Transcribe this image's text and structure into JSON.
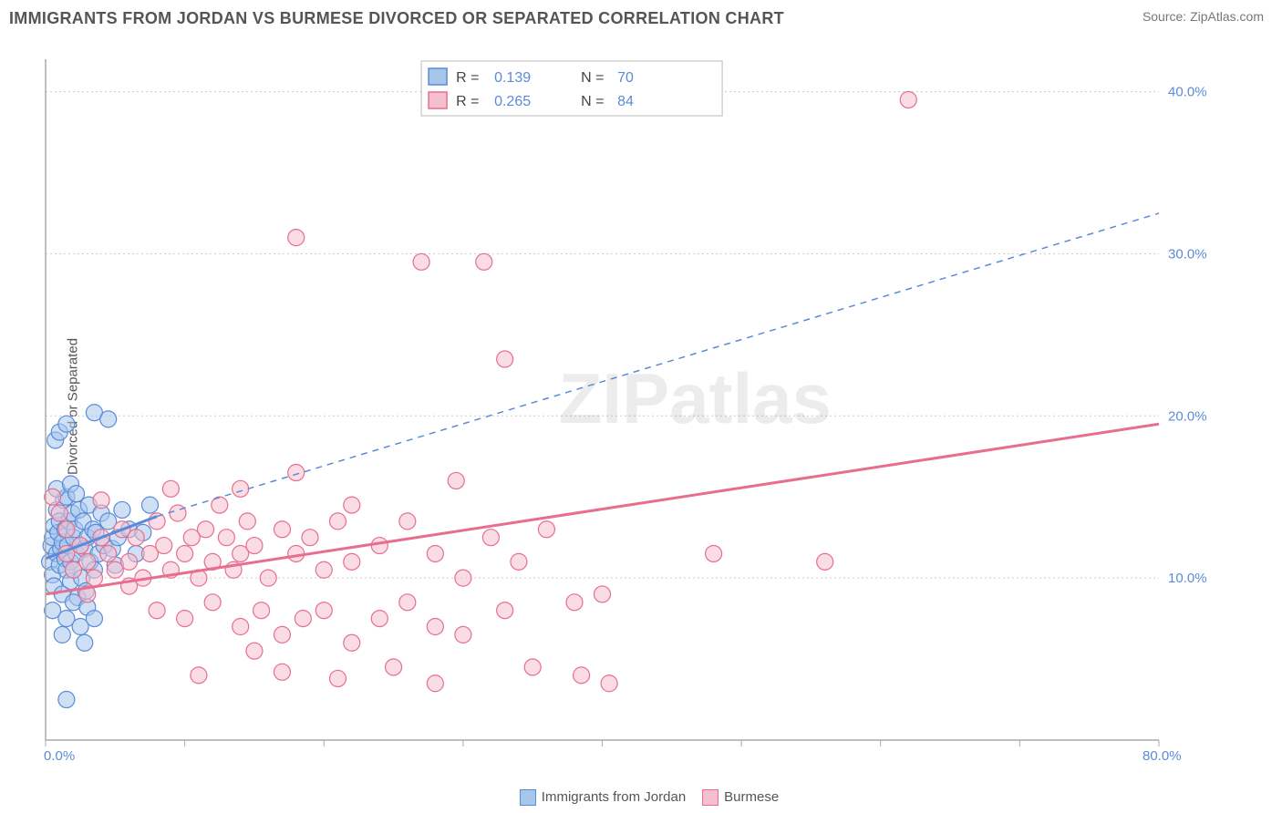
{
  "header": {
    "title": "IMMIGRANTS FROM JORDAN VS BURMESE DIVORCED OR SEPARATED CORRELATION CHART",
    "source_prefix": "Source: ",
    "source_name": "ZipAtlas.com"
  },
  "ylabel": "Divorced or Separated",
  "watermark": "ZIPatlas",
  "chart": {
    "type": "scatter",
    "xlim": [
      0,
      80
    ],
    "ylim": [
      0,
      42
    ],
    "x_ticks": [
      0,
      10,
      20,
      30,
      40,
      50,
      60,
      70,
      80
    ],
    "x_tick_labels": {
      "0": "0.0%",
      "80": "80.0%"
    },
    "y_gridlines": [
      10,
      20,
      30,
      40
    ],
    "y_gridline_labels": {
      "10": "10.0%",
      "20": "20.0%",
      "30": "30.0%",
      "40": "40.0%"
    },
    "background_color": "#ffffff",
    "grid_color": "#cccccc",
    "axis_color": "#aaaaaa",
    "label_color": "#5b8bd8",
    "marker_radius": 9,
    "marker_opacity": 0.55,
    "series": [
      {
        "name": "Immigrants from Jordan",
        "color_fill": "#a8c6ec",
        "color_stroke": "#5b8bd8",
        "r_value": "0.139",
        "n_value": "70",
        "trend_solid": {
          "x1": 0,
          "y1": 11.2,
          "x2": 8,
          "y2": 13.8
        },
        "trend_dashed": {
          "x1": 8,
          "y1": 13.8,
          "x2": 80,
          "y2": 32.5
        },
        "points": [
          [
            0.3,
            11.0
          ],
          [
            0.4,
            12.0
          ],
          [
            0.5,
            10.2
          ],
          [
            0.5,
            12.5
          ],
          [
            0.6,
            13.2
          ],
          [
            0.6,
            9.5
          ],
          [
            0.8,
            11.5
          ],
          [
            0.8,
            14.2
          ],
          [
            0.9,
            12.8
          ],
          [
            1.0,
            10.8
          ],
          [
            1.0,
            13.5
          ],
          [
            1.1,
            11.8
          ],
          [
            1.2,
            9.0
          ],
          [
            1.2,
            12.2
          ],
          [
            1.3,
            14.8
          ],
          [
            1.4,
            13.0
          ],
          [
            1.4,
            11.2
          ],
          [
            1.5,
            10.5
          ],
          [
            1.5,
            15.0
          ],
          [
            1.6,
            12.0
          ],
          [
            1.7,
            13.5
          ],
          [
            1.8,
            11.0
          ],
          [
            1.8,
            9.8
          ],
          [
            1.9,
            14.0
          ],
          [
            2.0,
            12.5
          ],
          [
            2.0,
            10.5
          ],
          [
            2.1,
            13.0
          ],
          [
            2.2,
            11.5
          ],
          [
            2.3,
            8.8
          ],
          [
            2.4,
            14.2
          ],
          [
            2.5,
            12.0
          ],
          [
            2.6,
            10.0
          ],
          [
            2.7,
            13.5
          ],
          [
            2.8,
            11.8
          ],
          [
            2.9,
            9.2
          ],
          [
            3.0,
            12.5
          ],
          [
            3.1,
            14.5
          ],
          [
            3.2,
            11.0
          ],
          [
            3.4,
            13.0
          ],
          [
            3.5,
            10.5
          ],
          [
            3.6,
            12.8
          ],
          [
            3.8,
            11.5
          ],
          [
            4.0,
            14.0
          ],
          [
            4.2,
            12.0
          ],
          [
            4.5,
            13.5
          ],
          [
            4.8,
            11.8
          ],
          [
            5.0,
            10.8
          ],
          [
            5.2,
            12.5
          ],
          [
            5.5,
            14.2
          ],
          [
            6.0,
            13.0
          ],
          [
            6.5,
            11.5
          ],
          [
            7.0,
            12.8
          ],
          [
            7.5,
            14.5
          ],
          [
            0.7,
            18.5
          ],
          [
            1.0,
            19.0
          ],
          [
            1.5,
            19.5
          ],
          [
            3.5,
            20.2
          ],
          [
            4.5,
            19.8
          ],
          [
            0.5,
            8.0
          ],
          [
            1.5,
            7.5
          ],
          [
            2.0,
            8.5
          ],
          [
            2.5,
            7.0
          ],
          [
            3.0,
            8.2
          ],
          [
            3.5,
            7.5
          ],
          [
            1.5,
            2.5
          ],
          [
            0.8,
            15.5
          ],
          [
            1.2,
            6.5
          ],
          [
            2.8,
            6.0
          ],
          [
            1.8,
            15.8
          ],
          [
            2.2,
            15.2
          ]
        ]
      },
      {
        "name": "Burmese",
        "color_fill": "#f4c0cd",
        "color_stroke": "#e86e8d",
        "r_value": "0.265",
        "n_value": "84",
        "trend_solid": {
          "x1": 0,
          "y1": 9.0,
          "x2": 80,
          "y2": 19.5
        },
        "trend_dashed": null,
        "points": [
          [
            1.5,
            11.5
          ],
          [
            2.0,
            10.5
          ],
          [
            2.5,
            12.0
          ],
          [
            3.0,
            11.0
          ],
          [
            3.5,
            10.0
          ],
          [
            4.0,
            12.5
          ],
          [
            4.5,
            11.5
          ],
          [
            5.0,
            10.5
          ],
          [
            5.5,
            13.0
          ],
          [
            6.0,
            11.0
          ],
          [
            6.5,
            12.5
          ],
          [
            7.0,
            10.0
          ],
          [
            7.5,
            11.5
          ],
          [
            8.0,
            13.5
          ],
          [
            8.5,
            12.0
          ],
          [
            9.0,
            10.5
          ],
          [
            9.5,
            14.0
          ],
          [
            10.0,
            11.5
          ],
          [
            10.5,
            12.5
          ],
          [
            11.0,
            10.0
          ],
          [
            11.5,
            13.0
          ],
          [
            12.0,
            11.0
          ],
          [
            12.5,
            14.5
          ],
          [
            13.0,
            12.5
          ],
          [
            13.5,
            10.5
          ],
          [
            14.0,
            11.5
          ],
          [
            14.5,
            13.5
          ],
          [
            15.0,
            12.0
          ],
          [
            16.0,
            10.0
          ],
          [
            17.0,
            13.0
          ],
          [
            18.0,
            11.5
          ],
          [
            19.0,
            12.5
          ],
          [
            20.0,
            10.5
          ],
          [
            21.0,
            13.5
          ],
          [
            22.0,
            11.0
          ],
          [
            24.0,
            12.0
          ],
          [
            26.0,
            13.5
          ],
          [
            28.0,
            11.5
          ],
          [
            30.0,
            10.0
          ],
          [
            32.0,
            12.5
          ],
          [
            34.0,
            11.0
          ],
          [
            36.0,
            13.0
          ],
          [
            8.0,
            8.0
          ],
          [
            10.0,
            7.5
          ],
          [
            12.0,
            8.5
          ],
          [
            14.0,
            7.0
          ],
          [
            15.5,
            8.0
          ],
          [
            17.0,
            6.5
          ],
          [
            18.5,
            7.5
          ],
          [
            20.0,
            8.0
          ],
          [
            22.0,
            6.0
          ],
          [
            24.0,
            7.5
          ],
          [
            26.0,
            8.5
          ],
          [
            28.0,
            7.0
          ],
          [
            30.0,
            6.5
          ],
          [
            33.0,
            8.0
          ],
          [
            35.0,
            4.5
          ],
          [
            11.0,
            4.0
          ],
          [
            17.0,
            4.2
          ],
          [
            21.0,
            3.8
          ],
          [
            25.0,
            4.5
          ],
          [
            28.0,
            3.5
          ],
          [
            14.0,
            15.5
          ],
          [
            18.0,
            16.5
          ],
          [
            22.0,
            14.5
          ],
          [
            29.5,
            16.0
          ],
          [
            38.0,
            8.5
          ],
          [
            38.5,
            4.0
          ],
          [
            40.0,
            9.0
          ],
          [
            40.5,
            3.5
          ],
          [
            48.0,
            11.5
          ],
          [
            56.0,
            11.0
          ],
          [
            18.0,
            31.0
          ],
          [
            27.0,
            29.5
          ],
          [
            31.5,
            29.5
          ],
          [
            33.0,
            23.5
          ],
          [
            62.0,
            39.5
          ],
          [
            0.5,
            15.0
          ],
          [
            1.0,
            14.0
          ],
          [
            1.5,
            13.0
          ],
          [
            3.0,
            9.0
          ],
          [
            4.0,
            14.8
          ],
          [
            6.0,
            9.5
          ],
          [
            9.0,
            15.5
          ],
          [
            15.0,
            5.5
          ]
        ]
      }
    ]
  },
  "legend_bottom": [
    {
      "label": "Immigrants from Jordan",
      "fill": "#a8c6ec",
      "stroke": "#5b8bd8"
    },
    {
      "label": "Burmese",
      "fill": "#f4c0cd",
      "stroke": "#e86e8d"
    }
  ]
}
